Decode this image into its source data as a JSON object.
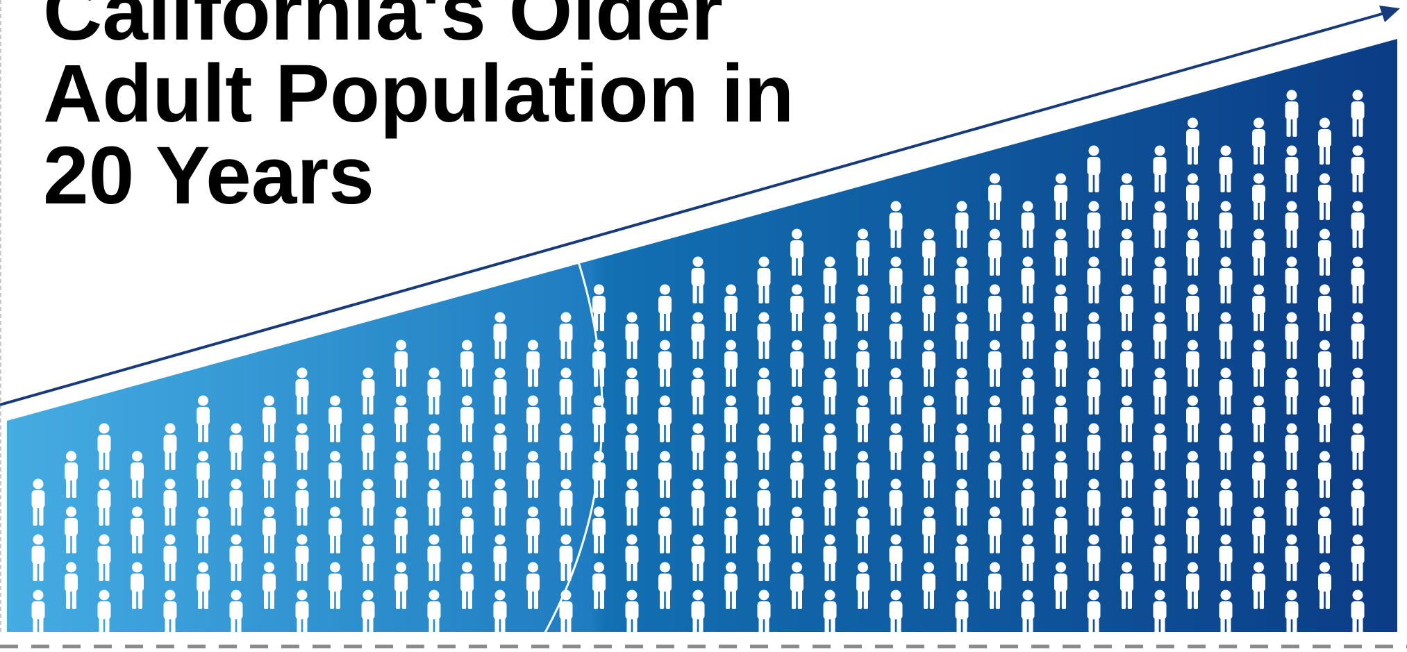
{
  "title": {
    "line1": "California's Older",
    "line2": "Adult Population in",
    "line3": "20 Years"
  },
  "colors": {
    "gradient_light": "#45ace2",
    "gradient_mid": "#1370b3",
    "gradient_dark": "#0b3c85",
    "trend_arrow": "#163a7c",
    "figures": "#ffffff",
    "baseline_dash": "#8a8a8a"
  },
  "icons": {
    "person": "person-icon",
    "trend": "trend-arrow-icon"
  }
}
